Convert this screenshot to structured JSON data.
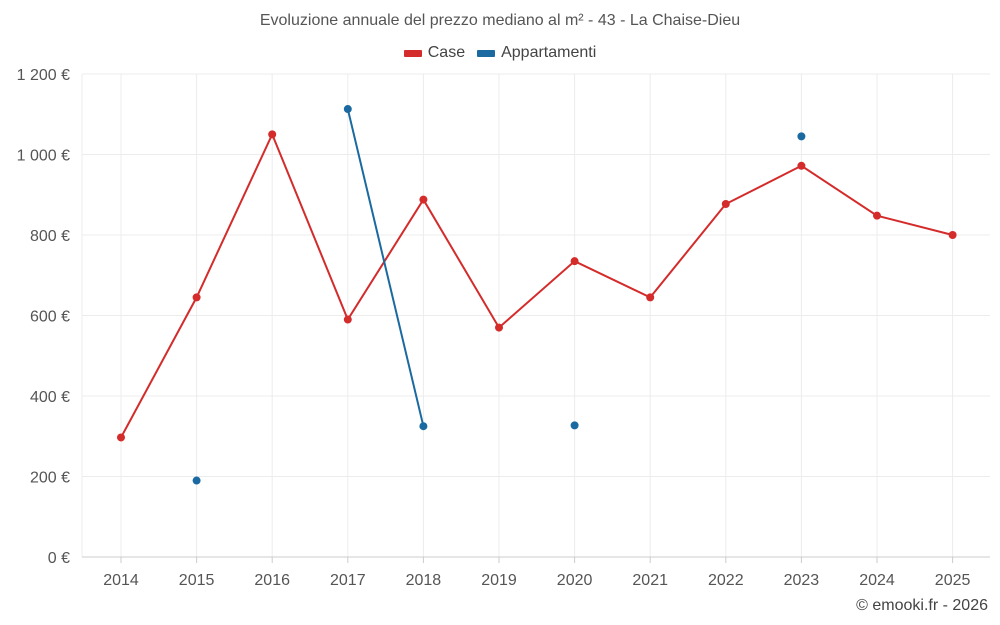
{
  "chart_data": {
    "type": "line",
    "title": "Evoluzione annuale del prezzo mediano al m² - 43 - La Chaise-Dieu",
    "categories": [
      "2014",
      "2015",
      "2016",
      "2017",
      "2018",
      "2019",
      "2020",
      "2021",
      "2022",
      "2023",
      "2024",
      "2025"
    ],
    "series": [
      {
        "name": "Case",
        "color": "#d42b2b",
        "values": [
          297,
          645,
          1050,
          590,
          888,
          570,
          735,
          645,
          877,
          972,
          848,
          800
        ]
      },
      {
        "name": "Appartamenti",
        "color": "#1a6aa1",
        "values": [
          null,
          190,
          null,
          1113,
          325,
          null,
          327,
          null,
          null,
          1045,
          null,
          null
        ]
      }
    ],
    "y_ticks": [
      0,
      200,
      400,
      600,
      800,
      1000,
      1200
    ],
    "y_tick_labels": [
      "0 €",
      "200 €",
      "400 €",
      "600 €",
      "800 €",
      "1 000 €",
      "1 200 €"
    ],
    "ylim": [
      0,
      1200
    ],
    "xlabel": "",
    "ylabel": "",
    "grid": true,
    "legend_position": "top-center"
  },
  "footer": {
    "copyright": "© emooki.fr - 2026"
  }
}
